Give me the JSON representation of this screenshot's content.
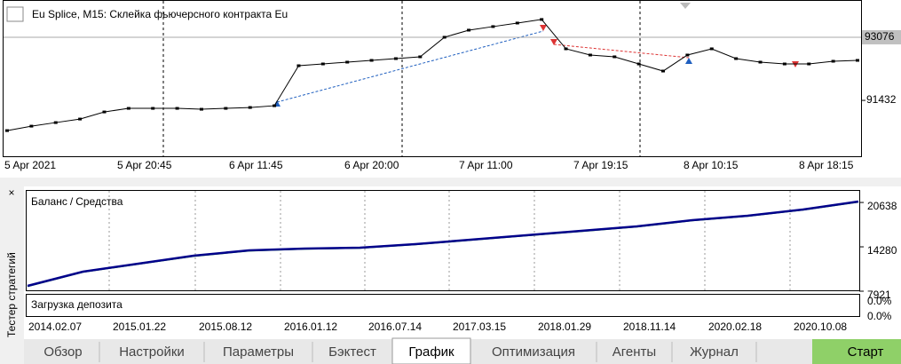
{
  "window": {
    "title": "Eu Splice, M15:  Склейка фьючерсного контракта Eu"
  },
  "price_chart": {
    "type": "line",
    "values": [
      90645,
      90761,
      90854,
      90946,
      91131,
      91224,
      91224,
      91224,
      91201,
      91224,
      91247,
      91293,
      92335,
      92381,
      92428,
      92474,
      92520,
      92567,
      93076,
      93261,
      93354,
      93446,
      93539,
      92775,
      92613,
      92567,
      92381,
      92196,
      92613,
      92775,
      92520,
      92428,
      92381,
      92381,
      92451,
      92474
    ],
    "ylim": [
      90000,
      94000
    ],
    "yticks": [
      91432
    ],
    "current_price": 93076,
    "x_labels": [
      "5 Apr 2021",
      "5 Apr 20:45",
      "6 Apr 11:45",
      "6 Apr 20:00",
      "7 Apr 11:00",
      "7 Apr 19:15",
      "8 Apr 10:15",
      "8 Apr 18:15"
    ]
  },
  "tester": {
    "panel_title": "Тестер стратегий",
    "close": "×",
    "balance_chart": {
      "type": "line",
      "series": [
        {
          "name": "Баланс",
          "color": "#00008b",
          "values": [
            8685,
            10721,
            11866,
            13011,
            13774,
            14029,
            14156,
            14665,
            15302,
            15938,
            16574,
            17210,
            18101,
            18737,
            19628,
            20773
          ]
        },
        {
          "name": "Средства",
          "color": "#2ca02c",
          "values": [
            8600,
            10650,
            11800,
            12930,
            13700,
            13960,
            14090,
            14600,
            15230,
            15870,
            16500,
            17140,
            18030,
            18670,
            19560,
            20700
          ]
        }
      ],
      "legend_separator": "/",
      "ylim": [
        7921,
        22300
      ],
      "yticks": [
        7921,
        14280,
        20638
      ],
      "x_labels": [
        "2014.02.07",
        "2015.01.22",
        "2015.08.12",
        "2016.01.12",
        "2016.07.14",
        "2017.03.15",
        "2018.01.29",
        "2018.11.14",
        "2020.02.18",
        "2020.10.08"
      ]
    },
    "deposit_load": {
      "title": "Загрузка депозита",
      "labels": [
        "0.0%",
        "0.0%"
      ]
    },
    "tabs": [
      "Обзор",
      "Настройки",
      "Параметры",
      "Бэктест",
      "График",
      "Оптимизация",
      "Агенты",
      "Журнал"
    ],
    "start_button": "Старт"
  }
}
